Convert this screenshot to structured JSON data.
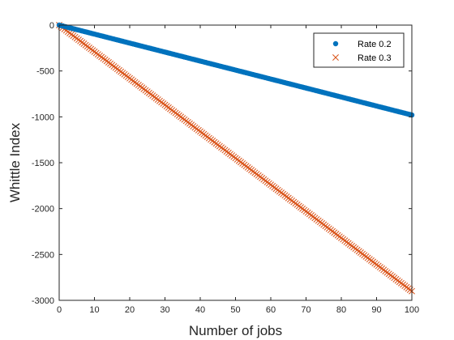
{
  "chart_data": {
    "type": "scatter",
    "xlabel": "Number of jobs",
    "ylabel": "Whittle Index",
    "xlim": [
      0,
      100
    ],
    "ylim": [
      -3000,
      0
    ],
    "x_ticks": [
      0,
      10,
      20,
      30,
      40,
      50,
      60,
      70,
      80,
      90,
      100
    ],
    "y_ticks": [
      0,
      -500,
      -1000,
      -1500,
      -2000,
      -2500,
      -3000
    ],
    "grid": false,
    "legend_position": "top-right",
    "x": {
      "start": 0,
      "end": 100,
      "step": 0.5
    },
    "series": [
      {
        "name": "Rate 0.2",
        "marker": "dot",
        "color": "#0072BD",
        "slope": -9.8,
        "intercept": 0
      },
      {
        "name": "Rate 0.3",
        "marker": "x",
        "color": "#D95319",
        "slope": -29.0,
        "intercept": 0
      }
    ]
  }
}
